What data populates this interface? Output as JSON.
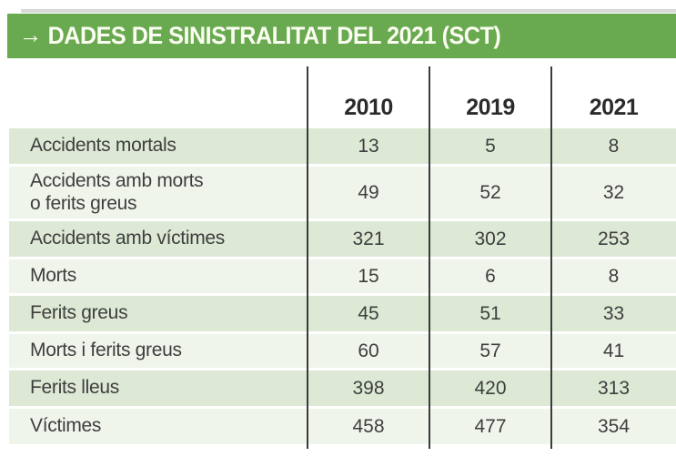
{
  "title": {
    "arrow": "→",
    "text": "DADES DE SINISTRALITAT DEL 2021 (SCT)"
  },
  "table": {
    "columns": [
      "2010",
      "2019",
      "2021"
    ],
    "rows": [
      {
        "label": "Accidents mortals",
        "values": [
          "13",
          "5",
          "8"
        ]
      },
      {
        "label": "Accidents amb morts\no ferits greus",
        "values": [
          "49",
          "52",
          "32"
        ]
      },
      {
        "label": "Accidents amb víctimes",
        "values": [
          "321",
          "302",
          "253"
        ]
      },
      {
        "label": "Morts",
        "values": [
          "15",
          "6",
          "8"
        ]
      },
      {
        "label": "Ferits greus",
        "values": [
          "45",
          "51",
          "33"
        ]
      },
      {
        "label": "Morts i ferits greus",
        "values": [
          "60",
          "57",
          "41"
        ]
      },
      {
        "label": "Ferits lleus",
        "values": [
          "398",
          "420",
          "313"
        ]
      },
      {
        "label": "Víctimes",
        "values": [
          "458",
          "477",
          "354"
        ]
      }
    ]
  },
  "chart_data": {
    "type": "table",
    "title": "DADES DE SINISTRALITAT DEL 2021 (SCT)",
    "categories": [
      "2010",
      "2019",
      "2021"
    ],
    "series": [
      {
        "name": "Accidents mortals",
        "values": [
          13,
          5,
          8
        ]
      },
      {
        "name": "Accidents amb morts o ferits greus",
        "values": [
          49,
          52,
          32
        ]
      },
      {
        "name": "Accidents amb víctimes",
        "values": [
          321,
          302,
          253
        ]
      },
      {
        "name": "Morts",
        "values": [
          15,
          6,
          8
        ]
      },
      {
        "name": "Ferits greus",
        "values": [
          45,
          51,
          33
        ]
      },
      {
        "name": "Morts i ferits greus",
        "values": [
          60,
          57,
          41
        ]
      },
      {
        "name": "Ferits lleus",
        "values": [
          398,
          420,
          313
        ]
      },
      {
        "name": "Víctimes",
        "values": [
          458,
          477,
          354
        ]
      }
    ]
  },
  "colors": {
    "header_green": "#69aa50",
    "row_green": "#dde9d5",
    "row_pale": "#f0f5ec",
    "rule_gray": "#d9d9d9",
    "line_dark": "#3b3b3b",
    "text_dark": "#3e3e3e",
    "title_text": "#fcfdf2"
  }
}
